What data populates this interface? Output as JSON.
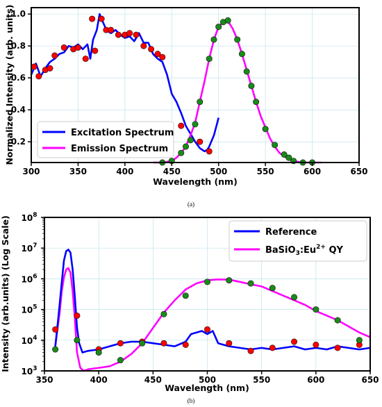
{
  "chart_data": [
    {
      "type": "line",
      "panel_label": "(a)",
      "xlabel": "Wavelength (nm)",
      "ylabel": "Normalized Intensity (arb. units)",
      "xlim": [
        300,
        650
      ],
      "ylim": [
        0.07,
        1.04
      ],
      "xticks": [
        300,
        350,
        400,
        450,
        500,
        550,
        600,
        650
      ],
      "xtick_labels": [
        "300",
        "350",
        "400",
        "450",
        "500",
        "550",
        "600",
        "650"
      ],
      "yticks": [
        0.2,
        0.4,
        0.6,
        0.8,
        1.0
      ],
      "ytick_labels": [
        "0.2",
        "0.4",
        "0.6",
        "0.8",
        "1.0"
      ],
      "grid": true,
      "legend_position": "lower-left",
      "series": [
        {
          "name": "Excitation Spectrum",
          "color": "#0000ff",
          "x": [
            300,
            305,
            310,
            315,
            320,
            325,
            330,
            335,
            340,
            345,
            350,
            355,
            360,
            363,
            366,
            370,
            373,
            375,
            378,
            380,
            385,
            390,
            395,
            400,
            405,
            410,
            415,
            420,
            425,
            430,
            435,
            440,
            445,
            450,
            455,
            460,
            465,
            470,
            475,
            480,
            485,
            488,
            490,
            495,
            500
          ],
          "y": [
            0.62,
            0.69,
            0.61,
            0.66,
            0.7,
            0.72,
            0.75,
            0.76,
            0.8,
            0.79,
            0.81,
            0.78,
            0.81,
            0.72,
            0.84,
            0.9,
            1.0,
            0.97,
            0.93,
            0.9,
            0.88,
            0.9,
            0.87,
            0.85,
            0.86,
            0.83,
            0.88,
            0.82,
            0.82,
            0.75,
            0.72,
            0.7,
            0.62,
            0.5,
            0.45,
            0.38,
            0.3,
            0.25,
            0.2,
            0.16,
            0.14,
            0.15,
            0.17,
            0.24,
            0.35
          ]
        },
        {
          "name": "Emission Spectrum",
          "color": "#ff00ff",
          "x": [
            430,
            440,
            450,
            455,
            460,
            465,
            470,
            475,
            480,
            485,
            490,
            495,
            500,
            505,
            508,
            510,
            515,
            520,
            525,
            530,
            535,
            540,
            545,
            550,
            555,
            560,
            565,
            570,
            575,
            580,
            585,
            590,
            600,
            610
          ],
          "y": [
            0.07,
            0.07,
            0.08,
            0.1,
            0.13,
            0.17,
            0.24,
            0.32,
            0.45,
            0.58,
            0.72,
            0.84,
            0.92,
            0.95,
            0.96,
            0.955,
            0.91,
            0.84,
            0.75,
            0.65,
            0.55,
            0.45,
            0.36,
            0.29,
            0.22,
            0.17,
            0.13,
            0.11,
            0.09,
            0.08,
            0.075,
            0.07,
            0.07,
            0.07
          ]
        }
      ],
      "markers": [
        {
          "color": "#ff0000",
          "x": [
            303,
            308,
            315,
            320,
            325,
            335,
            345,
            350,
            358,
            365,
            368,
            375,
            380,
            385,
            393,
            400,
            405,
            412,
            420,
            428,
            435,
            440,
            460,
            480,
            490
          ],
          "y": [
            0.67,
            0.61,
            0.65,
            0.66,
            0.74,
            0.79,
            0.78,
            0.79,
            0.72,
            0.97,
            0.77,
            0.97,
            0.9,
            0.9,
            0.87,
            0.87,
            0.88,
            0.87,
            0.8,
            0.78,
            0.75,
            0.73,
            0.3,
            0.2,
            0.14
          ]
        },
        {
          "color": "#1a8a1a",
          "x": [
            440,
            450,
            460,
            465,
            470,
            475,
            480,
            490,
            495,
            500,
            505,
            510,
            520,
            525,
            530,
            535,
            540,
            550,
            560,
            570,
            575,
            580,
            590,
            600
          ],
          "y": [
            0.07,
            0.08,
            0.13,
            0.17,
            0.21,
            0.31,
            0.45,
            0.72,
            0.84,
            0.92,
            0.95,
            0.96,
            0.84,
            0.75,
            0.64,
            0.55,
            0.45,
            0.28,
            0.18,
            0.12,
            0.1,
            0.08,
            0.07,
            0.07
          ]
        }
      ]
    },
    {
      "type": "line",
      "panel_label": "(b)",
      "xlabel": "Wavelength (nm)",
      "ylabel": "Intensity (arb.units) (Log Scale)",
      "xlim": [
        350,
        650
      ],
      "ylim_log10": [
        3,
        8
      ],
      "log_scale_y": true,
      "xticks": [
        350,
        400,
        450,
        500,
        550,
        600,
        650
      ],
      "xtick_labels": [
        "350",
        "400",
        "450",
        "500",
        "550",
        "600",
        "650"
      ],
      "yticks_log10": [
        3,
        4,
        5,
        6,
        7,
        8
      ],
      "ytick_base": "10",
      "ytick_exponents": [
        "3",
        "4",
        "5",
        "6",
        "7",
        "8"
      ],
      "grid": true,
      "legend_position": "top-right",
      "series": [
        {
          "name": "Reference",
          "color": "#0000ff",
          "x": [
            360,
            363,
            366,
            368,
            370,
            372,
            374,
            376,
            378,
            380,
            382,
            385,
            390,
            400,
            410,
            420,
            430,
            440,
            450,
            460,
            470,
            480,
            485,
            490,
            495,
            500,
            505,
            510,
            520,
            530,
            540,
            550,
            560,
            570,
            580,
            590,
            600,
            610,
            620,
            630,
            640,
            650
          ],
          "y_log10": [
            3.8,
            4.8,
            5.9,
            6.6,
            6.9,
            6.95,
            6.85,
            6.3,
            5.4,
            4.4,
            3.9,
            3.6,
            3.65,
            3.7,
            3.8,
            3.9,
            3.95,
            3.95,
            3.9,
            3.85,
            3.8,
            3.95,
            4.2,
            4.25,
            4.3,
            4.2,
            4.3,
            3.9,
            3.8,
            3.75,
            3.7,
            3.75,
            3.7,
            3.75,
            3.8,
            3.7,
            3.75,
            3.7,
            3.8,
            3.75,
            3.7,
            3.75
          ]
        },
        {
          "name": "BaSiO3:Eu2+ QY",
          "legend_base": "BaSiO",
          "legend_sub": "3",
          "legend_mid": ":Eu",
          "legend_sup": "2+",
          "legend_tail": " QY",
          "color": "#ff00ff",
          "x": [
            360,
            364,
            366,
            368,
            370,
            372,
            374,
            376,
            378,
            380,
            383,
            386,
            390,
            400,
            410,
            420,
            430,
            440,
            450,
            460,
            470,
            480,
            490,
            500,
            510,
            520,
            530,
            540,
            550,
            560,
            570,
            580,
            590,
            600,
            610,
            620,
            630,
            640,
            650
          ],
          "y_log10": [
            3.8,
            4.9,
            5.6,
            6.05,
            6.3,
            6.35,
            6.2,
            5.6,
            4.7,
            3.6,
            3.1,
            3.0,
            3.05,
            3.1,
            3.15,
            3.3,
            3.55,
            3.9,
            4.4,
            4.9,
            5.3,
            5.65,
            5.85,
            5.95,
            5.98,
            5.97,
            5.9,
            5.82,
            5.75,
            5.6,
            5.45,
            5.3,
            5.15,
            4.95,
            4.8,
            4.65,
            4.45,
            4.25,
            4.1
          ]
        }
      ],
      "markers": [
        {
          "color": "#ff0000",
          "x": [
            360,
            380,
            400,
            420,
            440,
            460,
            480,
            500,
            520,
            540,
            560,
            580,
            600,
            620,
            640
          ],
          "y_log10": [
            4.35,
            4.8,
            3.7,
            3.9,
            3.95,
            3.9,
            3.85,
            4.35,
            3.9,
            3.65,
            3.75,
            3.95,
            3.85,
            3.75,
            3.85
          ]
        },
        {
          "color": "#1a8a1a",
          "x": [
            360,
            380,
            400,
            420,
            440,
            460,
            480,
            500,
            520,
            540,
            560,
            580,
            600,
            620,
            640
          ],
          "y_log10": [
            3.7,
            4.0,
            3.6,
            3.35,
            3.9,
            4.85,
            5.45,
            5.9,
            5.95,
            5.85,
            5.7,
            5.4,
            5.0,
            4.65,
            4.0
          ]
        }
      ]
    }
  ]
}
